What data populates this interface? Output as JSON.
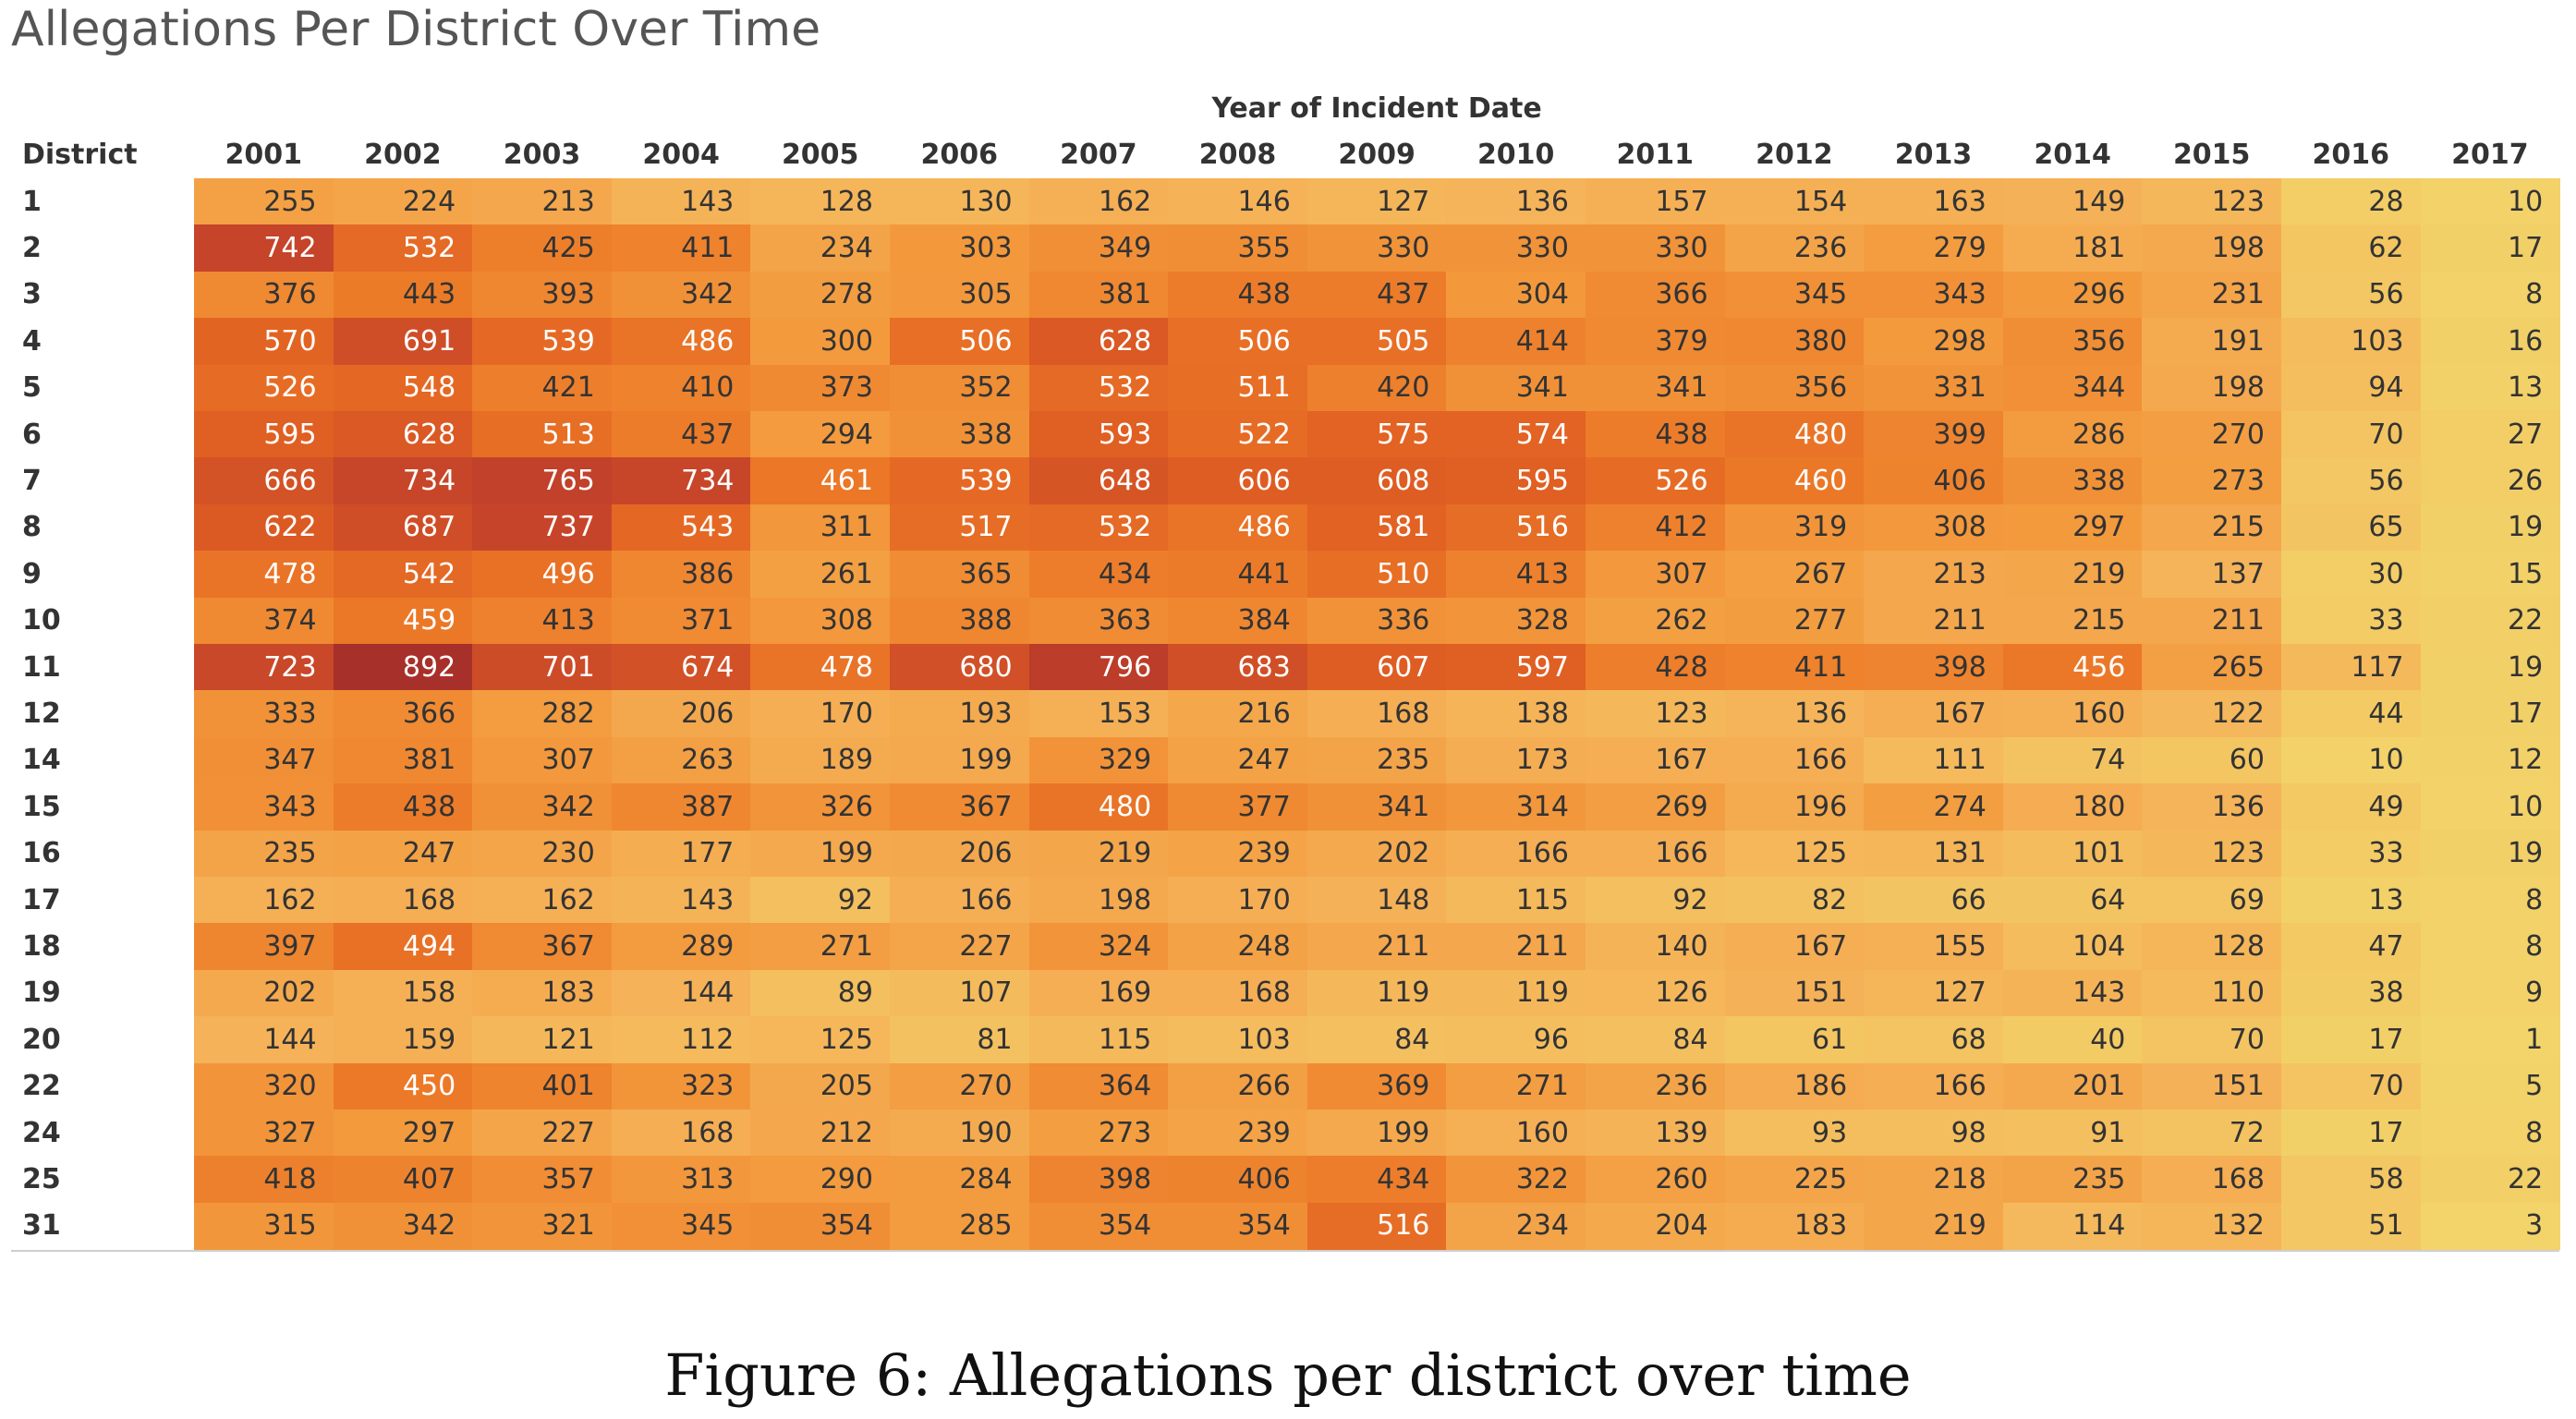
{
  "chart_data": {
    "type": "heatmap",
    "title": "Allegations Per District Over Time",
    "column_axis_title": "Year of Incident Date",
    "row_axis_title": "District",
    "columns": [
      "2001",
      "2002",
      "2003",
      "2004",
      "2005",
      "2006",
      "2007",
      "2008",
      "2009",
      "2010",
      "2011",
      "2012",
      "2013",
      "2014",
      "2015",
      "2016",
      "2017"
    ],
    "rows": [
      "1",
      "2",
      "3",
      "4",
      "5",
      "6",
      "7",
      "8",
      "9",
      "10",
      "11",
      "12",
      "14",
      "15",
      "16",
      "17",
      "18",
      "19",
      "20",
      "22",
      "24",
      "25",
      "31"
    ],
    "values": [
      [
        255,
        224,
        213,
        143,
        128,
        130,
        162,
        146,
        127,
        136,
        157,
        154,
        163,
        149,
        123,
        28,
        10
      ],
      [
        742,
        532,
        425,
        411,
        234,
        303,
        349,
        355,
        330,
        330,
        330,
        236,
        279,
        181,
        198,
        62,
        17
      ],
      [
        376,
        443,
        393,
        342,
        278,
        305,
        381,
        438,
        437,
        304,
        366,
        345,
        343,
        296,
        231,
        56,
        8
      ],
      [
        570,
        691,
        539,
        486,
        300,
        506,
        628,
        506,
        505,
        414,
        379,
        380,
        298,
        356,
        191,
        103,
        16
      ],
      [
        526,
        548,
        421,
        410,
        373,
        352,
        532,
        511,
        420,
        341,
        341,
        356,
        331,
        344,
        198,
        94,
        13
      ],
      [
        595,
        628,
        513,
        437,
        294,
        338,
        593,
        522,
        575,
        574,
        438,
        480,
        399,
        286,
        270,
        70,
        27
      ],
      [
        666,
        734,
        765,
        734,
        461,
        539,
        648,
        606,
        608,
        595,
        526,
        460,
        406,
        338,
        273,
        56,
        26
      ],
      [
        622,
        687,
        737,
        543,
        311,
        517,
        532,
        486,
        581,
        516,
        412,
        319,
        308,
        297,
        215,
        65,
        19
      ],
      [
        478,
        542,
        496,
        386,
        261,
        365,
        434,
        441,
        510,
        413,
        307,
        267,
        213,
        219,
        137,
        30,
        15
      ],
      [
        374,
        459,
        413,
        371,
        308,
        388,
        363,
        384,
        336,
        328,
        262,
        277,
        211,
        215,
        211,
        33,
        22
      ],
      [
        723,
        892,
        701,
        674,
        478,
        680,
        796,
        683,
        607,
        597,
        428,
        411,
        398,
        456,
        265,
        117,
        19
      ],
      [
        333,
        366,
        282,
        206,
        170,
        193,
        153,
        216,
        168,
        138,
        123,
        136,
        167,
        160,
        122,
        44,
        17
      ],
      [
        347,
        381,
        307,
        263,
        189,
        199,
        329,
        247,
        235,
        173,
        167,
        166,
        111,
        74,
        60,
        10,
        12
      ],
      [
        343,
        438,
        342,
        387,
        326,
        367,
        480,
        377,
        341,
        314,
        269,
        196,
        274,
        180,
        136,
        49,
        10
      ],
      [
        235,
        247,
        230,
        177,
        199,
        206,
        219,
        239,
        202,
        166,
        166,
        125,
        131,
        101,
        123,
        33,
        19
      ],
      [
        162,
        168,
        162,
        143,
        92,
        166,
        198,
        170,
        148,
        115,
        92,
        82,
        66,
        64,
        69,
        13,
        8
      ],
      [
        397,
        494,
        367,
        289,
        271,
        227,
        324,
        248,
        211,
        211,
        140,
        167,
        155,
        104,
        128,
        47,
        8
      ],
      [
        202,
        158,
        183,
        144,
        89,
        107,
        169,
        168,
        119,
        119,
        126,
        151,
        127,
        143,
        110,
        38,
        9
      ],
      [
        144,
        159,
        121,
        112,
        125,
        81,
        115,
        103,
        84,
        96,
        84,
        61,
        68,
        40,
        70,
        17,
        1
      ],
      [
        320,
        450,
        401,
        323,
        205,
        270,
        364,
        266,
        369,
        271,
        236,
        186,
        166,
        201,
        151,
        70,
        5
      ],
      [
        327,
        297,
        227,
        168,
        212,
        190,
        273,
        239,
        199,
        160,
        139,
        93,
        98,
        91,
        72,
        17,
        8
      ],
      [
        418,
        407,
        357,
        313,
        290,
        284,
        398,
        406,
        434,
        322,
        260,
        225,
        218,
        235,
        168,
        58,
        22
      ],
      [
        315,
        342,
        321,
        345,
        354,
        285,
        354,
        354,
        516,
        234,
        204,
        183,
        219,
        114,
        132,
        51,
        3
      ]
    ],
    "color_scale": [
      "#f2d46a",
      "#f5b157",
      "#f39a3d",
      "#ec7a28",
      "#e05f22",
      "#c5442a",
      "#a8302a"
    ],
    "text_color_dark": "#333333",
    "text_color_light": "#ffffff",
    "legend": "none",
    "grid": false
  },
  "caption": "Figure 6:  Allegations per district over time"
}
